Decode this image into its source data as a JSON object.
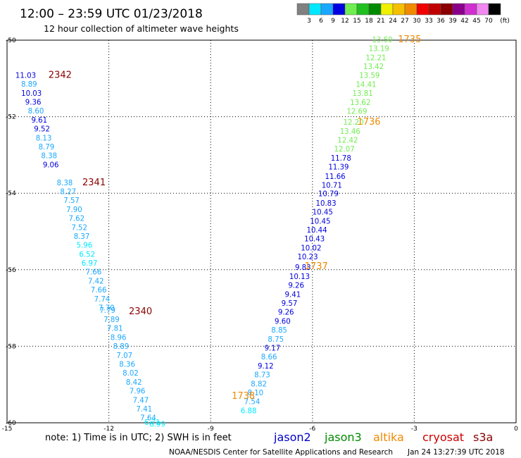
{
  "header": {
    "title": "12:00 – 23:59 UTC 01/23/2018",
    "subtitle": "12 hour collection of altimeter wave heights"
  },
  "footer": {
    "note": "note: 1) Time is in UTC; 2) SWH is in feet",
    "credit": "NOAA/NESDIS Center for Satellite Applications and Research",
    "timestamp": "Jan 24 13:27:39 UTC 2018"
  },
  "legend": {
    "unit": "(ft)",
    "items": [
      {
        "label": "3",
        "color": "#808080"
      },
      {
        "label": "6",
        "color": "#00e8ff"
      },
      {
        "label": "9",
        "color": "#1aa8ff"
      },
      {
        "label": "12",
        "color": "#0000e0"
      },
      {
        "label": "15",
        "color": "#70ee50"
      },
      {
        "label": "18",
        "color": "#20c020"
      },
      {
        "label": "21",
        "color": "#008a00"
      },
      {
        "label": "24",
        "color": "#f0f000"
      },
      {
        "label": "27",
        "color": "#f5c000"
      },
      {
        "label": "30",
        "color": "#f08a00"
      },
      {
        "label": "33",
        "color": "#f00000"
      },
      {
        "label": "36",
        "color": "#c00000"
      },
      {
        "label": "39",
        "color": "#8a0000"
      },
      {
        "label": "42",
        "color": "#8a008a"
      },
      {
        "label": "45",
        "color": "#d030d0"
      },
      {
        "label": "70",
        "color": "#f088f0"
      },
      {
        "label": "",
        "color": "#000000"
      }
    ]
  },
  "satellites": [
    {
      "name": "jason2",
      "color": "#0000cc"
    },
    {
      "name": "jason3",
      "color": "#008a00"
    },
    {
      "name": "altika",
      "color": "#f08a00"
    },
    {
      "name": "cryosat",
      "color": "#cc0000"
    },
    {
      "name": "s3a",
      "color": "#8a0000"
    }
  ],
  "chart_data": {
    "type": "scatter",
    "title": "12:00 – 23:59 UTC 01/23/2018",
    "subtitle": "12 hour collection of altimeter wave heights",
    "xlim": [
      -15,
      0
    ],
    "ylim": [
      -60,
      -50
    ],
    "x_ticks": [
      -15,
      -12,
      -9,
      -6,
      -3,
      0
    ],
    "y_ticks": [
      -50,
      -52,
      -54,
      -56,
      -58,
      -60
    ],
    "x_tick_labels": [
      "-15",
      "-12",
      "-9",
      "-6",
      "-3",
      "0"
    ],
    "y_tick_labels": [
      "-50",
      "-52",
      "-54",
      "-56",
      "-58",
      "-60"
    ],
    "grid": true,
    "series": [
      {
        "name": "s3a",
        "color": "#8a0000",
        "pass_labels": [
          {
            "text": "2342",
            "x": -13.78,
            "y": -50.91
          },
          {
            "text": "2341",
            "x": -12.78,
            "y": -53.72
          },
          {
            "text": "2340",
            "x": -11.41,
            "y": -57.09
          }
        ],
        "points": [
          {
            "x": -14.45,
            "y": -50.91,
            "v": "11.03",
            "c": "#0000e0"
          },
          {
            "x": -14.35,
            "y": -51.14,
            "v": "8.89",
            "c": "#1aa8ff"
          },
          {
            "x": -14.28,
            "y": -51.38,
            "v": "10.03",
            "c": "#0000e0"
          },
          {
            "x": -14.23,
            "y": -51.61,
            "v": "9.36",
            "c": "#0000e0"
          },
          {
            "x": -14.15,
            "y": -51.84,
            "v": "8.60",
            "c": "#1aa8ff"
          },
          {
            "x": -14.05,
            "y": -52.08,
            "v": "9.61",
            "c": "#0000e0"
          },
          {
            "x": -13.97,
            "y": -52.31,
            "v": "9.52",
            "c": "#0000e0"
          },
          {
            "x": -13.92,
            "y": -52.55,
            "v": "8.13",
            "c": "#1aa8ff"
          },
          {
            "x": -13.84,
            "y": -52.78,
            "v": "8.79",
            "c": "#1aa8ff"
          },
          {
            "x": -13.76,
            "y": -53.01,
            "v": "8.38",
            "c": "#1aa8ff"
          },
          {
            "x": -13.71,
            "y": -53.25,
            "v": "9.06",
            "c": "#0000e0"
          },
          {
            "x": -13.3,
            "y": -53.72,
            "v": "8.38",
            "c": "#1aa8ff"
          },
          {
            "x": -13.2,
            "y": -53.95,
            "v": "8.27",
            "c": "#1aa8ff"
          },
          {
            "x": -13.1,
            "y": -54.18,
            "v": "7.57",
            "c": "#1aa8ff"
          },
          {
            "x": -13.02,
            "y": -54.42,
            "v": "7.90",
            "c": "#1aa8ff"
          },
          {
            "x": -12.95,
            "y": -54.65,
            "v": "7.62",
            "c": "#1aa8ff"
          },
          {
            "x": -12.87,
            "y": -54.89,
            "v": "7.52",
            "c": "#1aa8ff"
          },
          {
            "x": -12.8,
            "y": -55.12,
            "v": "8.37",
            "c": "#1aa8ff"
          },
          {
            "x": -12.72,
            "y": -55.35,
            "v": "5.96",
            "c": "#00e8ff"
          },
          {
            "x": -12.64,
            "y": -55.59,
            "v": "6.52",
            "c": "#00e8ff"
          },
          {
            "x": -12.57,
            "y": -55.82,
            "v": "6.97",
            "c": "#00e8ff"
          },
          {
            "x": -12.45,
            "y": -56.05,
            "v": "7.66",
            "c": "#1aa8ff"
          },
          {
            "x": -12.38,
            "y": -56.29,
            "v": "7.42",
            "c": "#1aa8ff"
          },
          {
            "x": -12.3,
            "y": -56.52,
            "v": "7.66",
            "c": "#1aa8ff"
          },
          {
            "x": -12.2,
            "y": -56.76,
            "v": "7.74",
            "c": "#1aa8ff"
          },
          {
            "x": -12.07,
            "y": -56.99,
            "v": "7.70",
            "c": "#1aa8ff"
          },
          {
            "x": -12.04,
            "y": -57.05,
            "v": "7.79",
            "c": "#1aa8ff"
          },
          {
            "x": -11.92,
            "y": -57.29,
            "v": "7.89",
            "c": "#1aa8ff"
          },
          {
            "x": -11.82,
            "y": -57.52,
            "v": "7.81",
            "c": "#1aa8ff"
          },
          {
            "x": -11.72,
            "y": -57.76,
            "v": "8.96",
            "c": "#1aa8ff"
          },
          {
            "x": -11.64,
            "y": -57.99,
            "v": "8.89",
            "c": "#1aa8ff"
          },
          {
            "x": -11.54,
            "y": -58.23,
            "v": "7.07",
            "c": "#1aa8ff"
          },
          {
            "x": -11.46,
            "y": -58.46,
            "v": "8.36",
            "c": "#1aa8ff"
          },
          {
            "x": -11.36,
            "y": -58.69,
            "v": "8.02",
            "c": "#1aa8ff"
          },
          {
            "x": -11.26,
            "y": -58.93,
            "v": "8.42",
            "c": "#1aa8ff"
          },
          {
            "x": -11.16,
            "y": -59.16,
            "v": "7.96",
            "c": "#1aa8ff"
          },
          {
            "x": -11.06,
            "y": -59.4,
            "v": "7.47",
            "c": "#1aa8ff"
          },
          {
            "x": -10.96,
            "y": -59.63,
            "v": "7.41",
            "c": "#1aa8ff"
          },
          {
            "x": -10.84,
            "y": -59.86,
            "v": "7.64",
            "c": "#1aa8ff"
          },
          {
            "x": -10.72,
            "y": -59.98,
            "v": "6.71",
            "c": "#00e8ff"
          },
          {
            "x": -10.57,
            "y": -60.03,
            "v": "6.99",
            "c": "#00e8ff"
          }
        ]
      },
      {
        "name": "altika",
        "color": "#f08a00",
        "pass_labels": [
          {
            "text": "1735",
            "x": -3.48,
            "y": -49.98
          },
          {
            "text": "1736",
            "x": -4.68,
            "y": -52.14
          },
          {
            "text": "1737",
            "x": -6.23,
            "y": -55.91
          },
          {
            "text": "1738",
            "x": -8.38,
            "y": -59.3
          }
        ],
        "points": [
          {
            "x": -3.94,
            "y": -49.98,
            "v": "13.50",
            "c": "#70ee50"
          },
          {
            "x": -4.04,
            "y": -50.21,
            "v": "13.19",
            "c": "#70ee50"
          },
          {
            "x": -4.13,
            "y": -50.45,
            "v": "12.21",
            "c": "#70ee50"
          },
          {
            "x": -4.2,
            "y": -50.68,
            "v": "13.42",
            "c": "#70ee50"
          },
          {
            "x": -4.32,
            "y": -50.91,
            "v": "13.59",
            "c": "#70ee50"
          },
          {
            "x": -4.42,
            "y": -51.15,
            "v": "14.41",
            "c": "#70ee50"
          },
          {
            "x": -4.52,
            "y": -51.38,
            "v": "13.81",
            "c": "#70ee50"
          },
          {
            "x": -4.59,
            "y": -51.62,
            "v": "13.62",
            "c": "#70ee50"
          },
          {
            "x": -4.69,
            "y": -51.85,
            "v": "12.69",
            "c": "#70ee50"
          },
          {
            "x": -4.79,
            "y": -52.14,
            "v": "12.20",
            "c": "#70ee50"
          },
          {
            "x": -4.89,
            "y": -52.38,
            "v": "13.46",
            "c": "#70ee50"
          },
          {
            "x": -4.96,
            "y": -52.61,
            "v": "12.42",
            "c": "#70ee50"
          },
          {
            "x": -5.06,
            "y": -52.84,
            "v": "12.07",
            "c": "#70ee50"
          },
          {
            "x": -5.16,
            "y": -53.08,
            "v": "11.78",
            "c": "#0000e0"
          },
          {
            "x": -5.23,
            "y": -53.31,
            "v": "11.39",
            "c": "#0000e0"
          },
          {
            "x": -5.33,
            "y": -53.55,
            "v": "11.66",
            "c": "#0000e0"
          },
          {
            "x": -5.43,
            "y": -53.78,
            "v": "10.71",
            "c": "#0000e0"
          },
          {
            "x": -5.53,
            "y": -54.01,
            "v": "10.79",
            "c": "#0000e0"
          },
          {
            "x": -5.6,
            "y": -54.25,
            "v": "10.83",
            "c": "#0000e0"
          },
          {
            "x": -5.7,
            "y": -54.48,
            "v": "10.45",
            "c": "#0000e0"
          },
          {
            "x": -5.77,
            "y": -54.72,
            "v": "10.45",
            "c": "#0000e0"
          },
          {
            "x": -5.87,
            "y": -54.95,
            "v": "10.44",
            "c": "#0000e0"
          },
          {
            "x": -5.94,
            "y": -55.18,
            "v": "10.43",
            "c": "#0000e0"
          },
          {
            "x": -6.04,
            "y": -55.42,
            "v": "10.02",
            "c": "#0000e0"
          },
          {
            "x": -6.14,
            "y": -55.65,
            "v": "10.23",
            "c": "#0000e0"
          },
          {
            "x": -6.28,
            "y": -55.93,
            "v": "9.83",
            "c": "#0000e0"
          },
          {
            "x": -6.38,
            "y": -56.17,
            "v": "10.13",
            "c": "#0000e0"
          },
          {
            "x": -6.48,
            "y": -56.4,
            "v": "9.26",
            "c": "#0000e0"
          },
          {
            "x": -6.58,
            "y": -56.64,
            "v": "9.41",
            "c": "#0000e0"
          },
          {
            "x": -6.68,
            "y": -56.87,
            "v": "9.57",
            "c": "#0000e0"
          },
          {
            "x": -6.78,
            "y": -57.1,
            "v": "9.26",
            "c": "#0000e0"
          },
          {
            "x": -6.88,
            "y": -57.34,
            "v": "9.60",
            "c": "#0000e0"
          },
          {
            "x": -6.98,
            "y": -57.57,
            "v": "8.85",
            "c": "#1aa8ff"
          },
          {
            "x": -7.08,
            "y": -57.81,
            "v": "8.75",
            "c": "#1aa8ff"
          },
          {
            "x": -7.18,
            "y": -58.04,
            "v": "9.17",
            "c": "#0000e0"
          },
          {
            "x": -7.28,
            "y": -58.27,
            "v": "8.66",
            "c": "#1aa8ff"
          },
          {
            "x": -7.38,
            "y": -58.51,
            "v": "9.12",
            "c": "#0000e0"
          },
          {
            "x": -7.48,
            "y": -58.74,
            "v": "8.73",
            "c": "#1aa8ff"
          },
          {
            "x": -7.58,
            "y": -58.98,
            "v": "8.82",
            "c": "#1aa8ff"
          },
          {
            "x": -7.68,
            "y": -59.21,
            "v": "8.10",
            "c": "#1aa8ff"
          },
          {
            "x": -7.78,
            "y": -59.44,
            "v": "7.54",
            "c": "#1aa8ff"
          },
          {
            "x": -7.88,
            "y": -59.68,
            "v": "6.88",
            "c": "#00e8ff"
          }
        ]
      }
    ]
  }
}
